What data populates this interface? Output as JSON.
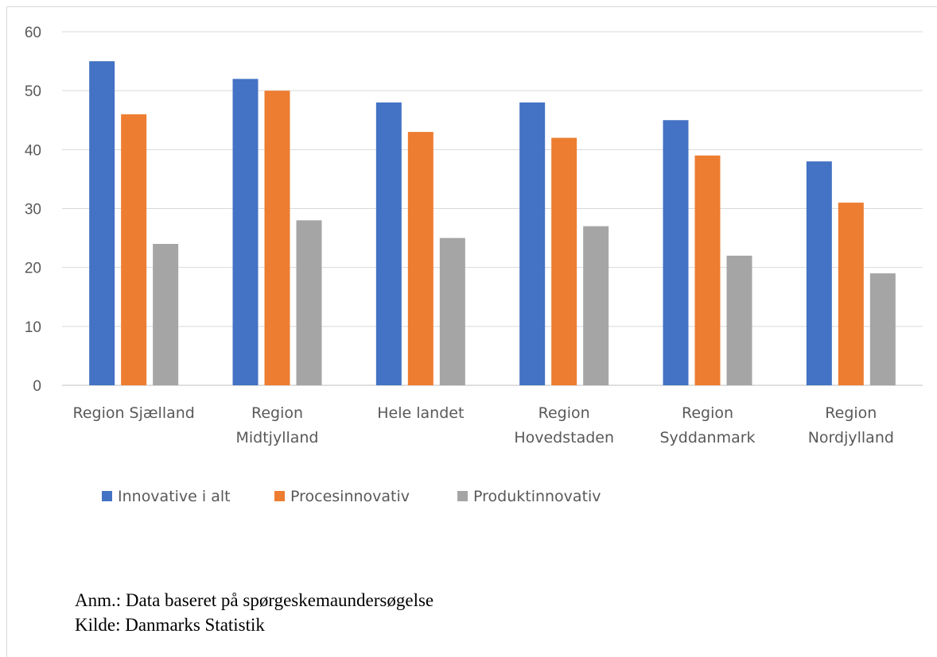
{
  "chart_data": {
    "type": "bar",
    "categories": [
      [
        "Region Sjælland"
      ],
      [
        "Region",
        "Midtjylland"
      ],
      [
        "Hele landet"
      ],
      [
        "Region",
        "Hovedstaden"
      ],
      [
        "Region",
        "Syddanmark"
      ],
      [
        "Region",
        "Nordjylland"
      ]
    ],
    "series": [
      {
        "name": "Innovative i alt",
        "color": "#4472c4",
        "values": [
          55,
          52,
          48,
          48,
          45,
          38
        ]
      },
      {
        "name": "Procesinnovativ",
        "color": "#ed7d31",
        "values": [
          46,
          50,
          43,
          42,
          39,
          31
        ]
      },
      {
        "name": "Produktinnovativ",
        "color": "#a5a5a5",
        "values": [
          24,
          28,
          25,
          27,
          22,
          19
        ]
      }
    ],
    "ylim": [
      0,
      60
    ],
    "yticks": [
      0,
      10,
      20,
      30,
      40,
      50,
      60
    ],
    "grid": true,
    "legend": "bottom-left"
  },
  "notes": {
    "line1": "Anm.: Data baseret på spørgeskemaundersøgelse",
    "line2": "Kilde: Danmarks Statistik"
  }
}
